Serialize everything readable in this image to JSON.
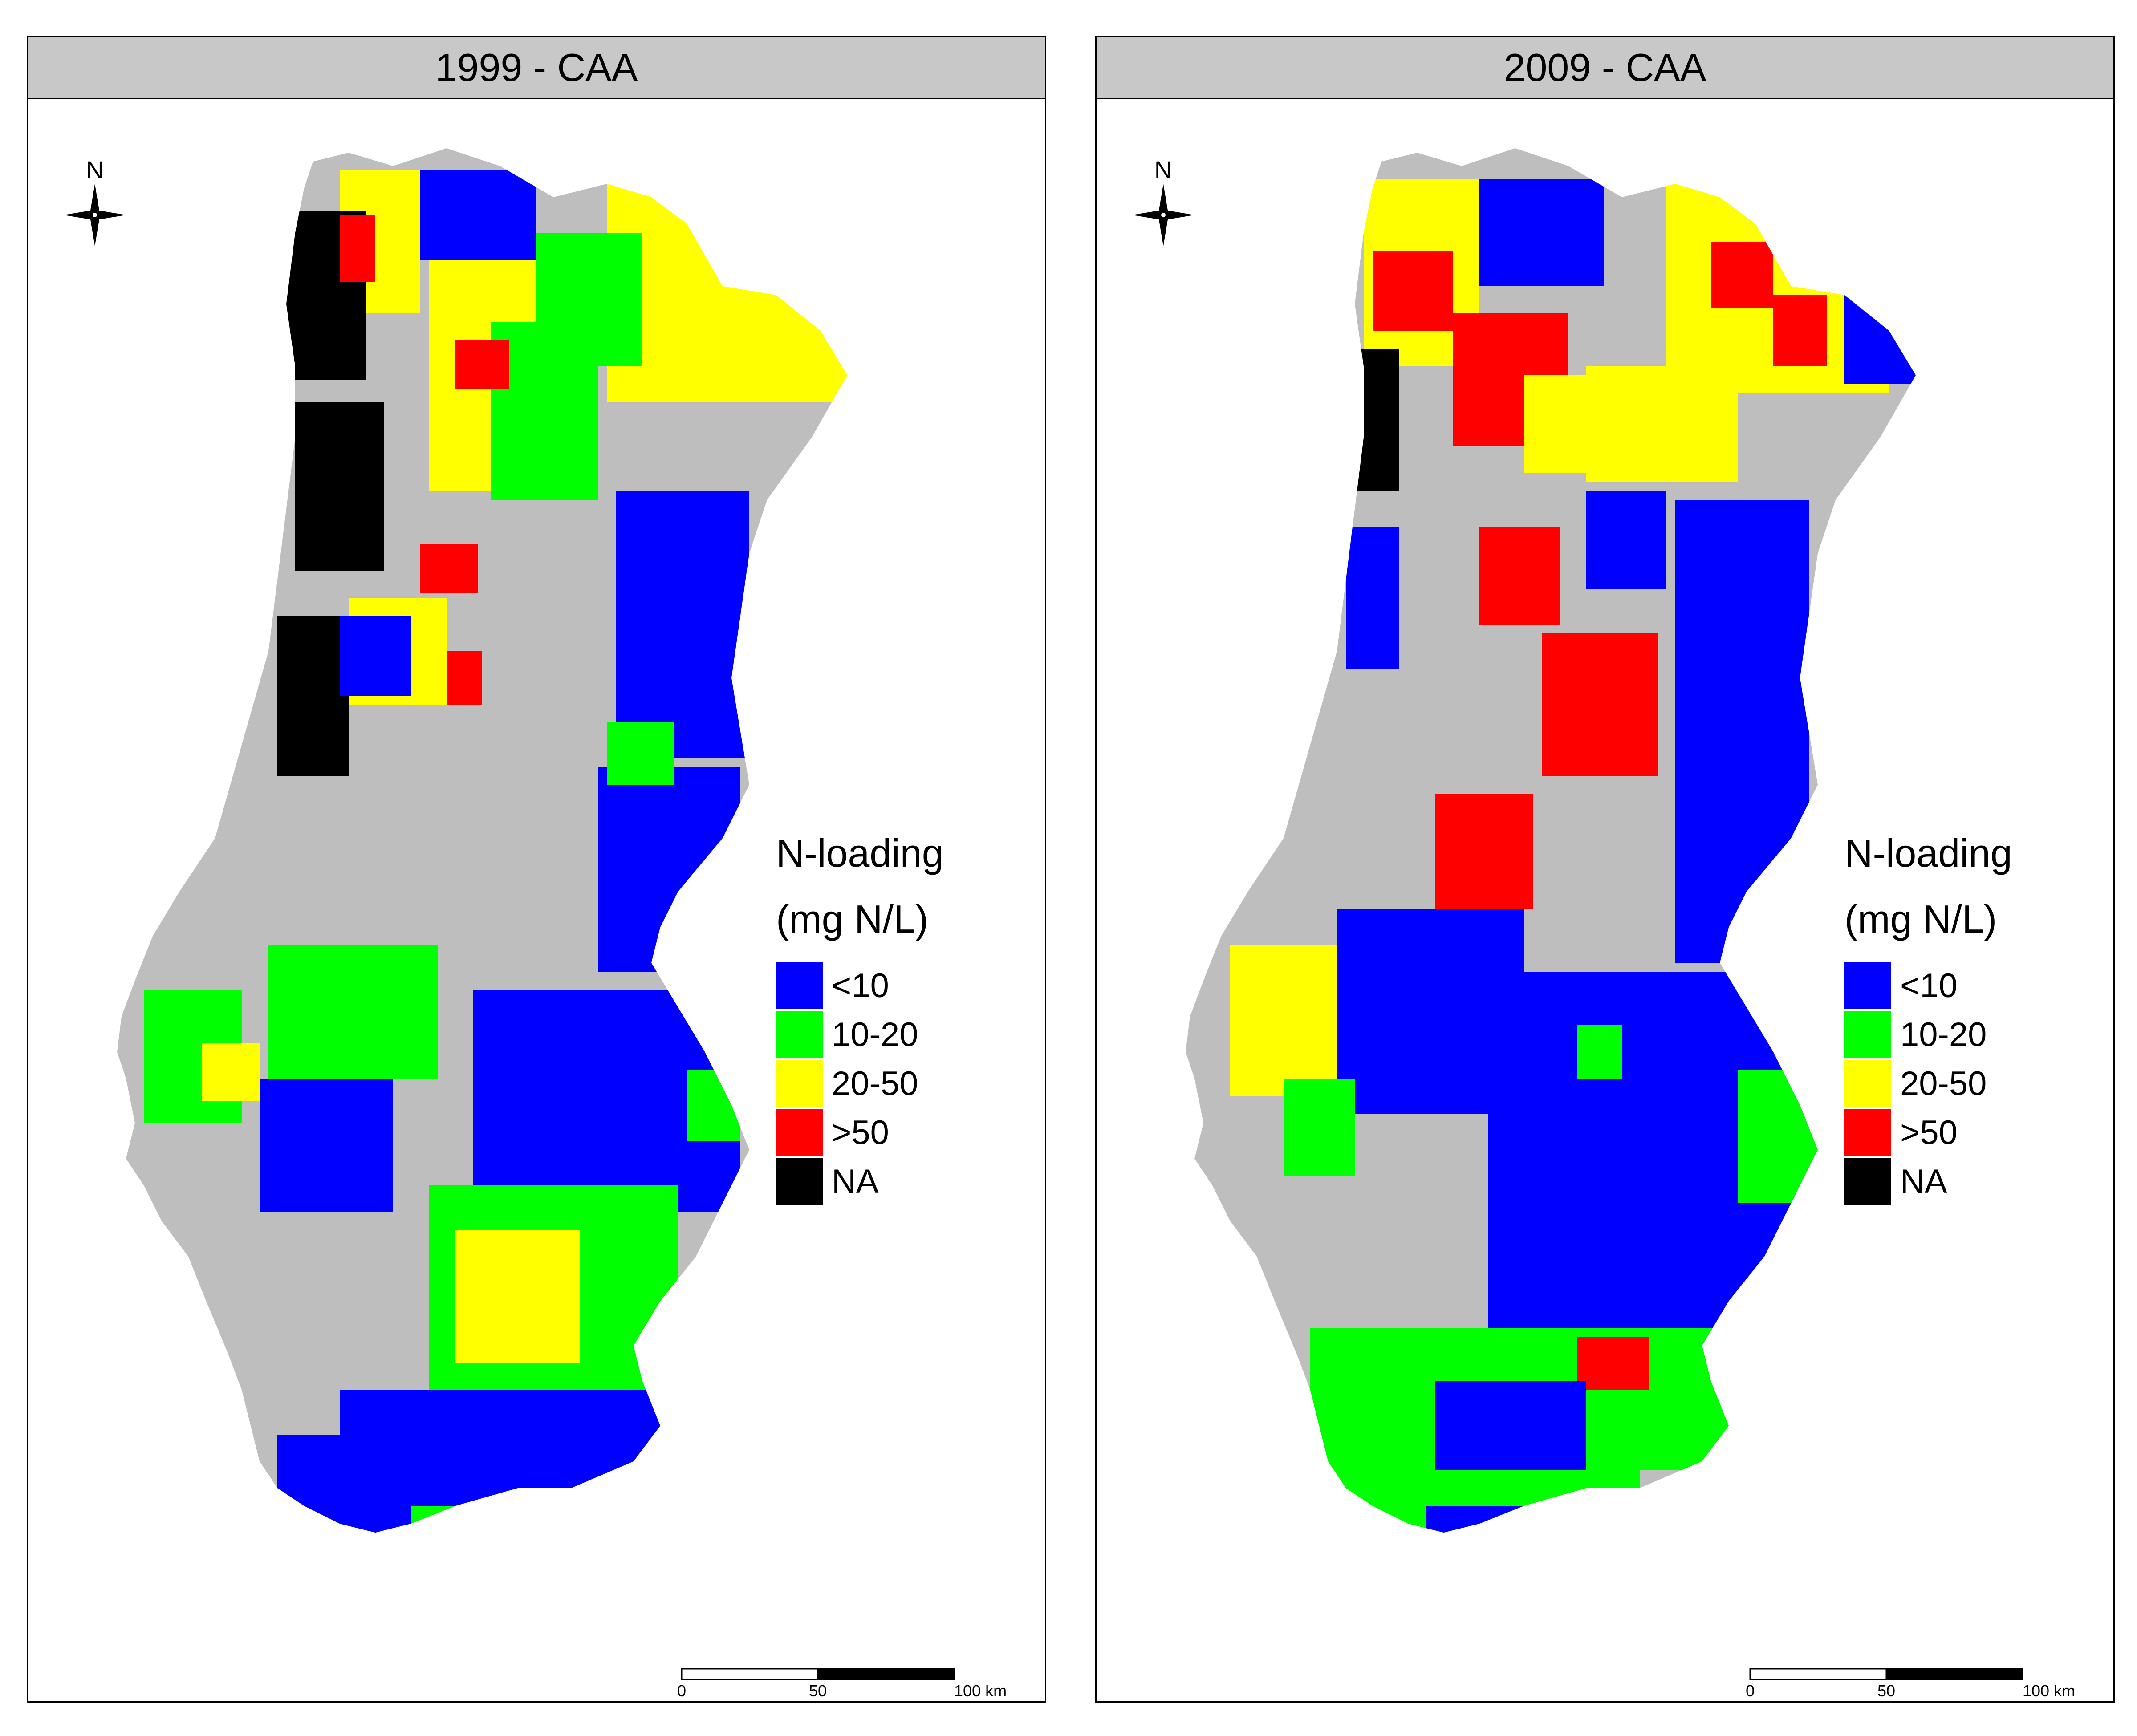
{
  "panels": [
    {
      "title": "1999 - CAA",
      "north_label": "N",
      "scale": {
        "ticks": [
          "0",
          "50",
          "100 km"
        ]
      }
    },
    {
      "title": "2009 - CAA",
      "north_label": "N",
      "scale": {
        "ticks": [
          "0",
          "50",
          "100 km"
        ]
      }
    }
  ],
  "legend": {
    "title": "N-loading",
    "unit": "(mg N/L)",
    "items": [
      {
        "label": "<10",
        "color": "#0000ff"
      },
      {
        "label": "10-20",
        "color": "#00ff00"
      },
      {
        "label": "20-50",
        "color": "#ffff00"
      },
      {
        "label": ">50",
        "color": "#ff0000"
      },
      {
        "label": "NA",
        "color": "#000000"
      }
    ]
  },
  "colors": {
    "land": "#bebebe",
    "header": "#c8c8c8",
    "border": "#000000"
  },
  "icons": [
    "north-arrow-icon"
  ]
}
